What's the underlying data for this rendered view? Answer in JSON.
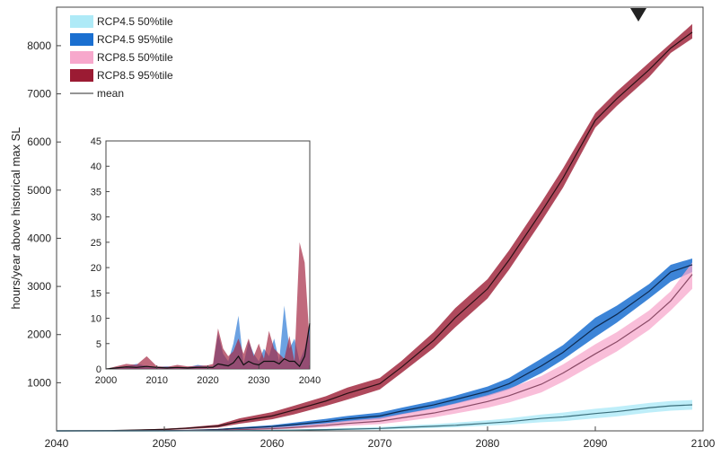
{
  "chart_data": {
    "type": "area",
    "ylabel": "hours/year above historical max SL",
    "xlim": [
      2040,
      2100
    ],
    "ylim": [
      0,
      8800
    ],
    "x_ticks": [
      2040,
      2050,
      2060,
      2070,
      2080,
      2090,
      2100
    ],
    "y_ticks": [
      1000,
      2000,
      3000,
      4000,
      5000,
      6000,
      7000,
      8000
    ],
    "grid": false,
    "legend_position": "top-left",
    "marker": {
      "shape": "down-triangle",
      "x": 2094,
      "y": 8650
    },
    "legend": [
      {
        "id": "rcp45_50",
        "label": "RCP4.5 50%tile",
        "color": "#aeeaf7"
      },
      {
        "id": "rcp45_95",
        "label": "RCP4.5 95%tile",
        "color": "#1a6fd0"
      },
      {
        "id": "rcp85_50",
        "label": "RCP8.5 50%tile",
        "color": "#f7a8cc"
      },
      {
        "id": "rcp85_95",
        "label": "RCP8.5 95%tile",
        "color": "#9b1b33"
      },
      {
        "id": "mean",
        "label": "mean",
        "color": "#555555"
      }
    ],
    "x": [
      2040,
      2045,
      2050,
      2052,
      2055,
      2057,
      2060,
      2062,
      2065,
      2067,
      2070,
      2072,
      2075,
      2077,
      2080,
      2082,
      2085,
      2087,
      2090,
      2092,
      2095,
      2097,
      2099
    ],
    "series": [
      {
        "id": "rcp85_95",
        "upper": [
          0,
          8,
          45,
          70,
          130,
          260,
          390,
          520,
          720,
          900,
          1100,
          1450,
          2050,
          2550,
          3150,
          3750,
          4750,
          5450,
          6600,
          7050,
          7650,
          8050,
          8450
        ],
        "mean": [
          0,
          5,
          30,
          55,
          100,
          200,
          310,
          430,
          620,
          780,
          980,
          1320,
          1880,
          2350,
          2950,
          3550,
          4550,
          5250,
          6450,
          6900,
          7500,
          7950,
          8280
        ],
        "lower": [
          0,
          2,
          15,
          35,
          70,
          150,
          240,
          340,
          520,
          650,
          860,
          1200,
          1720,
          2150,
          2750,
          3350,
          4350,
          5050,
          6300,
          6750,
          7350,
          7850,
          8150
        ]
      },
      {
        "id": "rcp45_95",
        "upper": [
          0,
          2,
          8,
          15,
          40,
          75,
          120,
          170,
          250,
          310,
          380,
          480,
          620,
          730,
          920,
          1100,
          1500,
          1780,
          2350,
          2600,
          3050,
          3450,
          3580
        ],
        "mean": [
          0,
          1,
          5,
          10,
          28,
          55,
          90,
          130,
          195,
          250,
          310,
          410,
          540,
          650,
          820,
          980,
          1350,
          1630,
          2150,
          2420,
          2900,
          3300,
          3450
        ],
        "lower": [
          0,
          0,
          2,
          5,
          15,
          35,
          60,
          90,
          140,
          190,
          240,
          340,
          460,
          560,
          720,
          860,
          1200,
          1480,
          1950,
          2250,
          2750,
          3100,
          3300
        ]
      },
      {
        "id": "rcp85_50",
        "upper": [
          0,
          1,
          5,
          10,
          20,
          40,
          70,
          100,
          160,
          210,
          270,
          350,
          470,
          570,
          740,
          880,
          1140,
          1380,
          1800,
          2050,
          2500,
          2900,
          3500
        ],
        "mean": [
          0,
          0,
          3,
          6,
          12,
          25,
          45,
          70,
          115,
          155,
          200,
          270,
          370,
          460,
          610,
          730,
          970,
          1200,
          1600,
          1850,
          2300,
          2700,
          3250
        ],
        "lower": [
          0,
          0,
          1,
          2,
          5,
          12,
          25,
          45,
          75,
          105,
          140,
          190,
          280,
          360,
          480,
          590,
          800,
          1020,
          1400,
          1650,
          2100,
          2500,
          2950
        ]
      },
      {
        "id": "rcp45_50",
        "upper": [
          0,
          0,
          1,
          2,
          5,
          10,
          20,
          30,
          45,
          60,
          80,
          110,
          140,
          170,
          220,
          260,
          340,
          380,
          460,
          500,
          580,
          620,
          640
        ],
        "mean": [
          0,
          0,
          0,
          1,
          2,
          5,
          10,
          15,
          25,
          35,
          50,
          70,
          95,
          115,
          160,
          190,
          260,
          290,
          360,
          400,
          480,
          520,
          540
        ],
        "lower": [
          0,
          0,
          0,
          0,
          1,
          2,
          5,
          8,
          12,
          18,
          28,
          40,
          60,
          75,
          110,
          130,
          180,
          200,
          260,
          300,
          380,
          420,
          440
        ]
      }
    ],
    "inset": {
      "xlim": [
        2000,
        2040
      ],
      "ylim": [
        0,
        45
      ],
      "x_ticks": [
        2000,
        2010,
        2020,
        2030,
        2040
      ],
      "y_ticks": [
        0,
        5,
        10,
        15,
        20,
        25,
        30,
        35,
        40,
        45
      ],
      "x": [
        2000,
        2002,
        2004,
        2006,
        2008,
        2010,
        2012,
        2014,
        2016,
        2018,
        2020,
        2021,
        2022,
        2023,
        2024,
        2025,
        2026,
        2027,
        2028,
        2029,
        2030,
        2031,
        2032,
        2033,
        2034,
        2035,
        2036,
        2037,
        2038,
        2039,
        2040
      ],
      "series": [
        {
          "id": "rcp45_95",
          "values": [
            0,
            0.3,
            0.5,
            1,
            0.6,
            0.4,
            0.5,
            0.3,
            0.3,
            0.8,
            0.5,
            0.5,
            7,
            3,
            1.5,
            5,
            10.5,
            1,
            5.5,
            3,
            1.5,
            4,
            2.5,
            6,
            1.5,
            12.5,
            4,
            6,
            1.5,
            4,
            9
          ]
        },
        {
          "id": "rcp85_95",
          "values": [
            0,
            0.5,
            1,
            0.8,
            2.5,
            0.5,
            0.4,
            0.8,
            0.5,
            0.6,
            0.7,
            1,
            8,
            4,
            2.5,
            3.5,
            6,
            3,
            6,
            2.5,
            5,
            2,
            7.5,
            4,
            3,
            2,
            6.5,
            1.5,
            25,
            21,
            5
          ]
        },
        {
          "id": "mean",
          "values": [
            0,
            0.2,
            0.4,
            0.3,
            0.5,
            0.3,
            0.2,
            0.3,
            0.2,
            0.3,
            0.3,
            0.3,
            1,
            0.8,
            0.6,
            1.2,
            2.5,
            0.8,
            1.5,
            1,
            0.8,
            1.5,
            1.5,
            1.5,
            1,
            2,
            1.5,
            1.5,
            0.5,
            2.5,
            9
          ]
        }
      ]
    }
  }
}
